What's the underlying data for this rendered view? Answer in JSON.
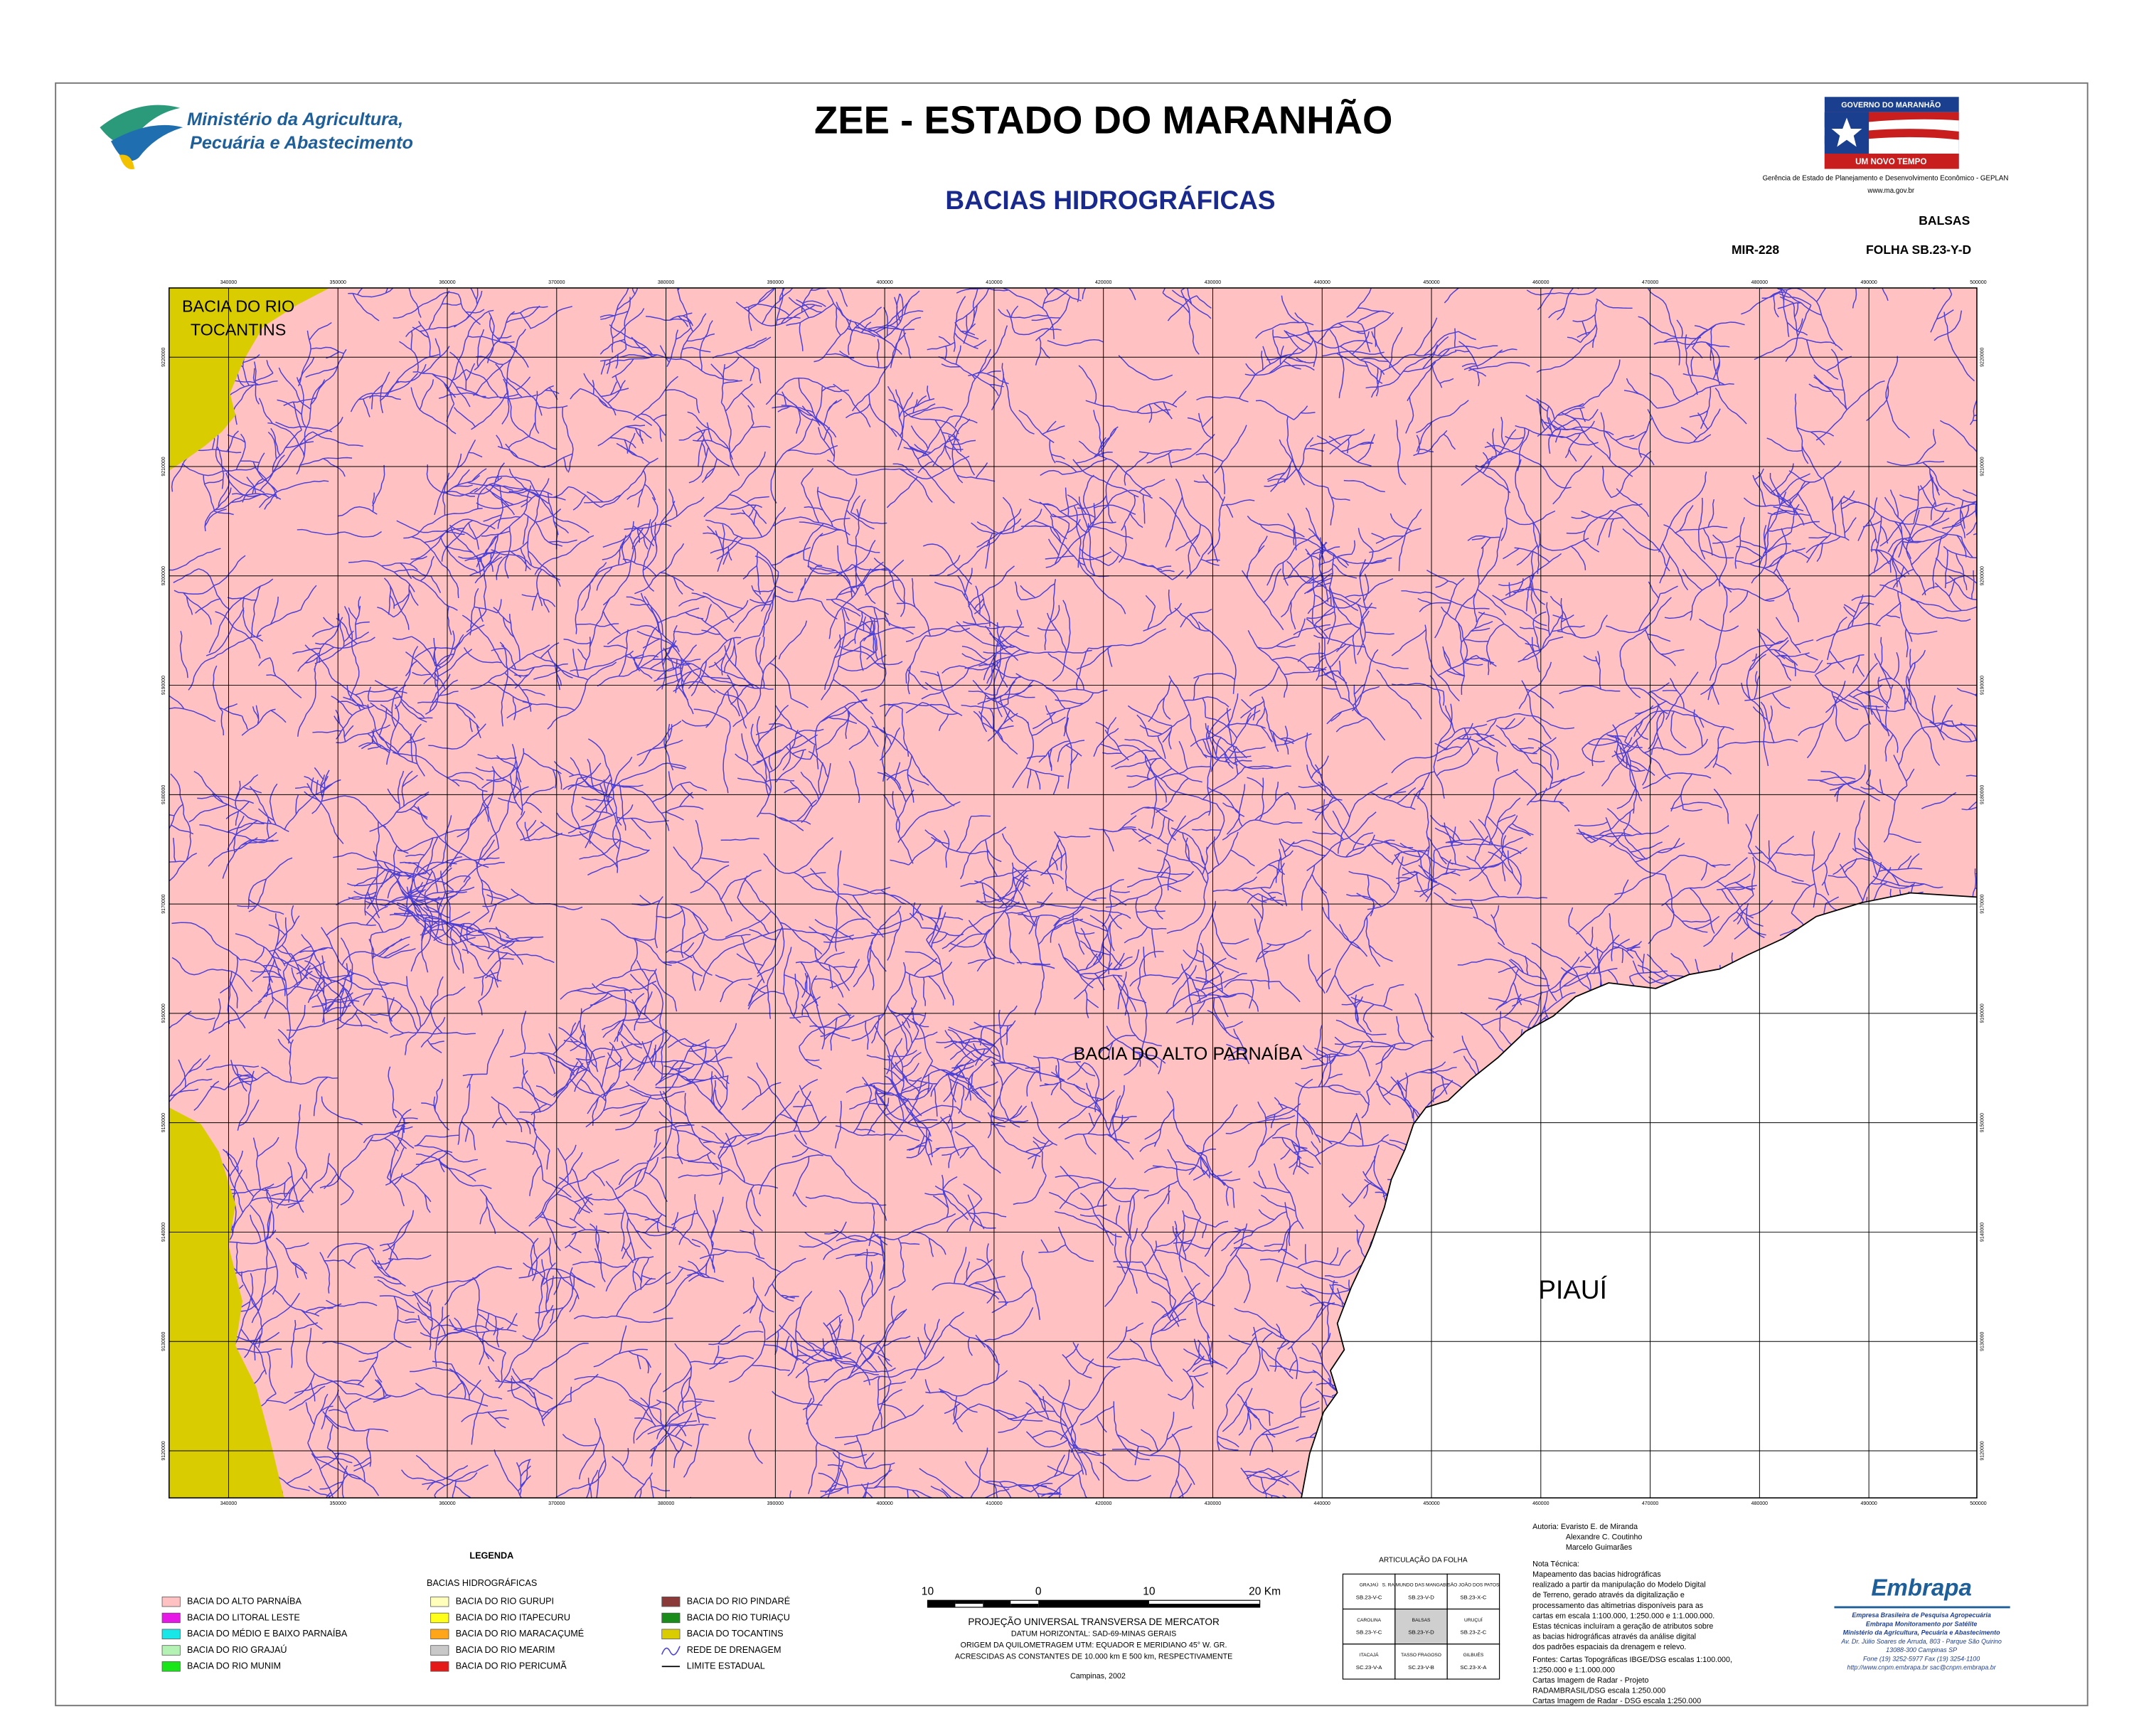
{
  "header": {
    "ministry": [
      "Ministério da Agricultura,",
      "Pecuária e Abastecimento"
    ],
    "title": "ZEE - ESTADO DO MARANHÃO",
    "subtitle": "BACIAS HIDROGRÁFICAS",
    "government": {
      "name": "GOVERNO DO MARANHÃO",
      "slogan": "UM NOVO TEMPO",
      "agency": "Gerência de Estado de Planejamento e Desenvolvimento Econômico - GEPLAN",
      "website": "www.ma.gov.br"
    },
    "sheet_name": "BALSAS",
    "sheet_code": "MIR-228",
    "sheet_index": "FOLHA SB.23-Y-D"
  },
  "map": {
    "x_ticks": [
      "340000",
      "350000",
      "360000",
      "370000",
      "380000",
      "390000",
      "400000",
      "410000",
      "420000",
      "430000",
      "440000",
      "450000",
      "460000",
      "470000",
      "480000",
      "490000",
      "500000"
    ],
    "y_ticks": [
      "9220000",
      "9210000",
      "9200000",
      "9190000",
      "9180000",
      "9170000",
      "9160000",
      "9150000",
      "9140000",
      "9130000",
      "9120000"
    ],
    "labels": {
      "tocantins": [
        "BACIA DO RIO",
        "TOCANTINS"
      ],
      "parnaiba": "BACIA DO ALTO PARNAÍBA",
      "state": "PIAUÍ"
    }
  },
  "legend": {
    "title": "LEGENDA",
    "group": "BACIAS HIDROGRÁFICAS",
    "columns": [
      [
        {
          "label": "BACIA DO ALTO PARNAÍBA",
          "color": "#ffc1c1"
        },
        {
          "label": "BACIA DO LITORAL LESTE",
          "color": "#e619e6"
        },
        {
          "label": "BACIA DO MÉDIO E BAIXO PARNAÍBA",
          "color": "#19e6e6"
        },
        {
          "label": "BACIA DO RIO GRAJAÚ",
          "color": "#b3f2b3"
        },
        {
          "label": "BACIA DO RIO MUNIM",
          "color": "#19e619"
        }
      ],
      [
        {
          "label": "BACIA DO RIO GURUPI",
          "color": "#ffffbb"
        },
        {
          "label": "BACIA DO RIO ITAPECURU",
          "color": "#ffff19"
        },
        {
          "label": "BACIA DO RIO MARACAÇUMÉ",
          "color": "#ffa519"
        },
        {
          "label": "BACIA DO RIO MEARIM",
          "color": "#c8c8c8"
        },
        {
          "label": "BACIA DO RIO PERICUMÃ",
          "color": "#e61919"
        }
      ],
      [
        {
          "label": "BACIA DO RIO PINDARÉ",
          "color": "#8b3a3a"
        },
        {
          "label": "BACIA DO RIO TURIAÇU",
          "color": "#198c19"
        },
        {
          "label": "BACIA DO TOCANTINS",
          "color": "#d9cc00"
        }
      ]
    ],
    "drainage": "REDE DE DRENAGEM",
    "boundary": "LIMITE ESTADUAL"
  },
  "scale": {
    "labels": [
      "10",
      "0",
      "10",
      "20 Km"
    ],
    "projection": [
      "PROJEÇÃO UNIVERSAL TRANSVERSA DE MERCATOR",
      "DATUM HORIZONTAL: SAD-69-MINAS GERAIS",
      "ORIGEM DA QUILOMETRAGEM UTM: EQUADOR E MERIDIANO 45° W. GR.",
      "ACRESCIDAS AS CONSTANTES DE 10.000 km E 500 km, RESPECTIVAMENTE"
    ],
    "place_date": "Campinas, 2002"
  },
  "articulation": {
    "title": "ARTICULAÇÃO DA FOLHA",
    "cells": [
      [
        {
          "name": "GRAJAÚ",
          "code": "SB.23-V-C"
        },
        {
          "name": "S. RAIMUNDO DAS MANGABEIRAS",
          "code": "SB.23-V-D"
        },
        {
          "name": "SÃO JOÃO DOS PATOS",
          "code": "SB.23-X-C"
        }
      ],
      [
        {
          "name": "CAROLINA",
          "code": "SB.23-Y-C"
        },
        {
          "name": "BALSAS",
          "code": "SB.23-Y-D"
        },
        {
          "name": "URUÇUÍ",
          "code": "SB.23-Z-C"
        }
      ],
      [
        {
          "name": "ITACAJÁ",
          "code": "SC.23-V-A"
        },
        {
          "name": "TASSO FRAGOSO",
          "code": "SC.23-V-B"
        },
        {
          "name": "GILBUÉS",
          "code": "SC.23-X-A"
        }
      ]
    ]
  },
  "notes": {
    "authorship": [
      "Autoria:  Evaristo E. de Miranda",
      "Alexandre C. Coutinho",
      "Marcelo Guimarães"
    ],
    "technical": [
      "Nota Técnica:",
      "Mapeamento das bacias hidrográficas",
      "realizado a partir da manipulação do Modelo Digital",
      "de Terreno, gerado através da digitalização e",
      "processamento das altimetrias disponíveis para as",
      "cartas em escala 1:100.000, 1:250.000 e 1:1.000.000.",
      "Estas técnicas incluíram a geração de atributos sobre",
      "as bacias hidrográficas através da análise digital",
      "dos padrões espaciais da drenagem e relevo."
    ],
    "sources": [
      "Fontes: Cartas Topográficas IBGE/DSG escalas 1:100.000,",
      "1:250.000 e 1:1.000.000",
      "Cartas Imagem de Radar - Projeto",
      "RADAMBRASIL/DSG escala 1:250.000",
      "Cartas Imagem de Radar - DSG escala 1:250.000"
    ]
  },
  "embrapa": {
    "logo": "Embrapa",
    "lines": [
      "Empresa Brasileira de Pesquisa Agropecuária",
      "Embrapa Monitoramento por Satélite",
      "Ministério da Agricultura, Pecuária e Abastecimento",
      "Av. Dr. Júlio Soares de Arruda, 803 - Parque São Quirino",
      "13088-300 Campinas SP",
      "Fone (19) 3252-5977 Fax (19) 3254-1100",
      "http://www.cnpm.embrapa.br  sac@cnpm.embrapa.br"
    ]
  }
}
